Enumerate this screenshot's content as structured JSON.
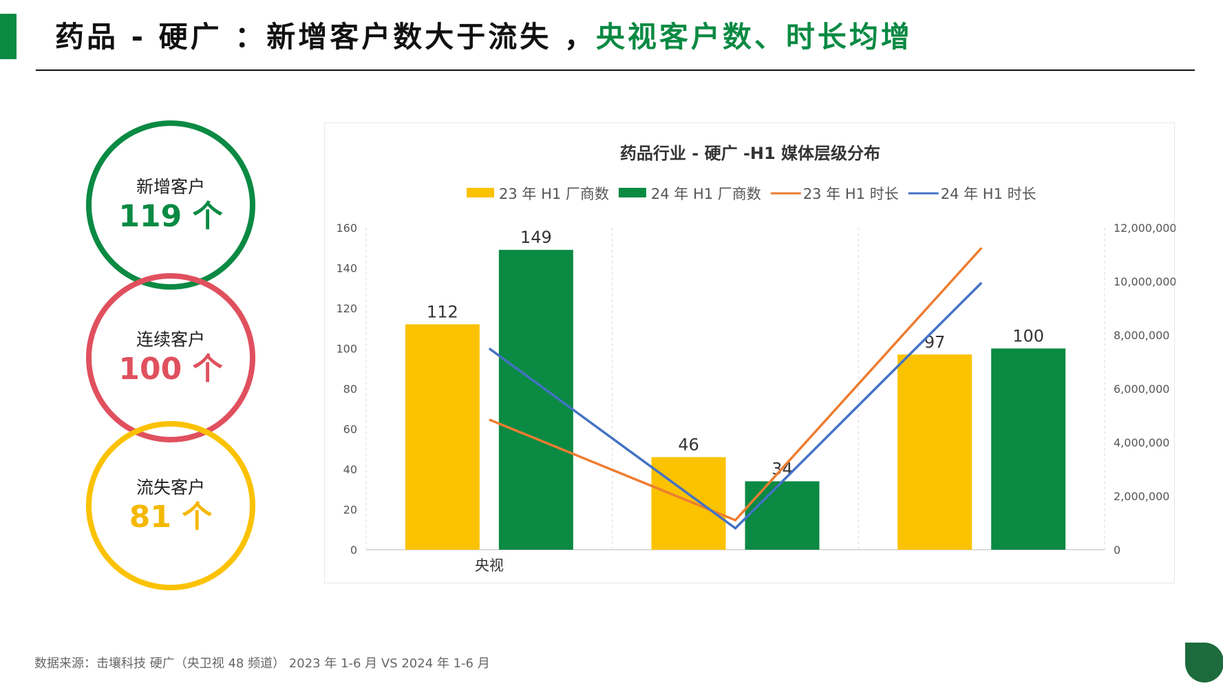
{
  "header": {
    "title_main": "药品 - 硬广 ：新增客户数大于流失 ，",
    "title_highlight": "央视客户数、时长均增"
  },
  "summary": {
    "new": {
      "label": "新增客户",
      "value": "119 个"
    },
    "continuing": {
      "label": "连续客户",
      "value": "100 个"
    },
    "lost": {
      "label": "流失客户",
      "value": "81 个"
    }
  },
  "colors": {
    "green": "#0a8a43",
    "red": "#e0505e",
    "yellow": "#fbc200",
    "orange": "#ed7d31",
    "blue": "#4472c4"
  },
  "chart_data": {
    "type": "bar",
    "title": "药品行业 - 硬广 -H1 媒体层级分布",
    "categories": [
      "央视",
      "",
      ""
    ],
    "series": [
      {
        "name": "23 年 H1 厂商数",
        "type": "bar",
        "axis": "left",
        "values": [
          112,
          46,
          97
        ],
        "color": "#fbc200"
      },
      {
        "name": "24 年 H1 厂商数",
        "type": "bar",
        "axis": "left",
        "values": [
          149,
          34,
          100
        ],
        "color": "#0a8a43"
      },
      {
        "name": "23 年 H1 时长",
        "type": "line",
        "axis": "right",
        "values": [
          4850000,
          1100000,
          11250000
        ],
        "color": "#ed7d31"
      },
      {
        "name": "24 年 H1 时长",
        "type": "line",
        "axis": "right",
        "values": [
          7500000,
          800000,
          9950000
        ],
        "color": "#4472c4"
      }
    ],
    "y_left": {
      "min": 0,
      "max": 160,
      "ticks": [
        "0",
        "20",
        "40",
        "60",
        "80",
        "100",
        "120",
        "140",
        "160"
      ]
    },
    "y_right": {
      "min": 0,
      "max": 12000000,
      "ticks": [
        "0",
        "2,000,000",
        "4,000,000",
        "6,000,000",
        "8,000,000",
        "10,000,000",
        "12,000,000"
      ]
    },
    "legend": "top",
    "grid": "vertical dashed separators"
  },
  "footer": {
    "source": "数据来源：击壤科技 硬广（央卫视 48 频道）  2023 年 1-6 月 VS 2024 年 1-6 月"
  }
}
